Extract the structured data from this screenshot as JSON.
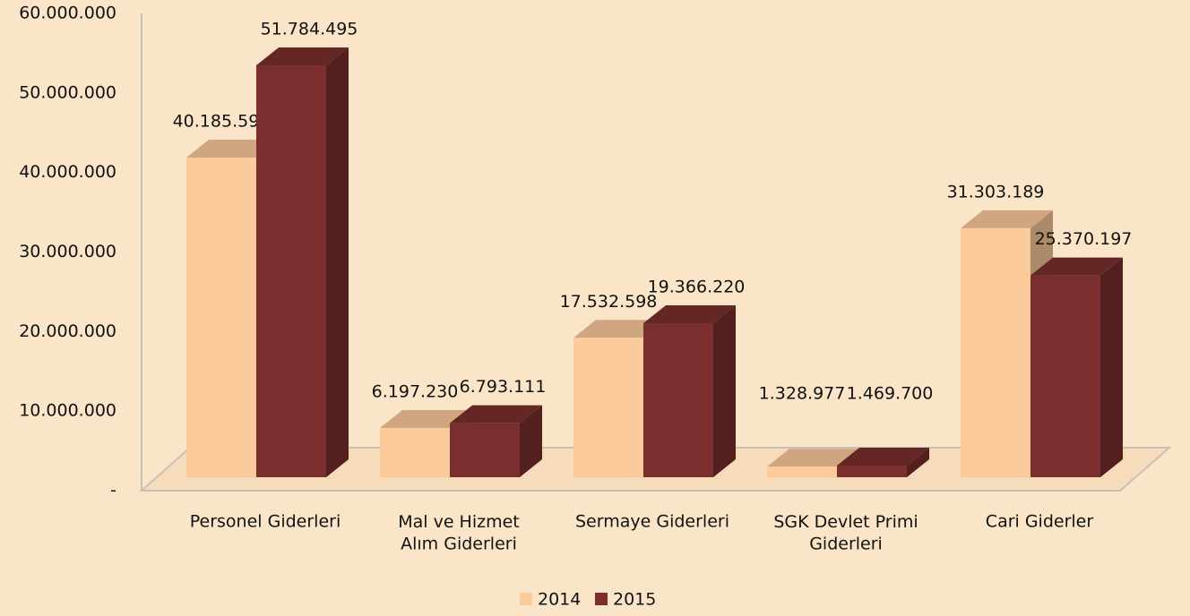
{
  "chart_data": {
    "type": "bar3d",
    "categories": [
      "Personel Giderleri",
      "Mal ve Hizmet\nAlım Giderleri",
      "Sermaye Giderleri",
      "SGK Devlet Primi\nGiderleri",
      "Cari Giderler"
    ],
    "series": [
      {
        "name": "2014",
        "color": "#fccb9b",
        "values": [
          40185594,
          6197230,
          17532598,
          1328977,
          31303189
        ],
        "value_labels": [
          "40.185.594",
          "6.197.230",
          "17.532.598",
          "1.328.977",
          "31.303.189"
        ]
      },
      {
        "name": "2015",
        "color": "#7b2e2e",
        "values": [
          51784495,
          6793111,
          19366220,
          1469700,
          25370197
        ],
        "value_labels": [
          "51.784.495",
          "6.793.111",
          "19.366.220",
          "1.469.700",
          "25.370.197"
        ]
      }
    ],
    "ylim": [
      0,
      60000000
    ],
    "yticks": [
      {
        "value": 0,
        "label": "-"
      },
      {
        "value": 10000000,
        "label": "10.000.000"
      },
      {
        "value": 20000000,
        "label": "20.000.000"
      },
      {
        "value": 30000000,
        "label": "30.000.000"
      },
      {
        "value": 40000000,
        "label": "40.000.000"
      },
      {
        "value": 50000000,
        "label": "50.000.000"
      },
      {
        "value": 60000000,
        "label": "60.000.000"
      }
    ],
    "legend": "bottom"
  }
}
